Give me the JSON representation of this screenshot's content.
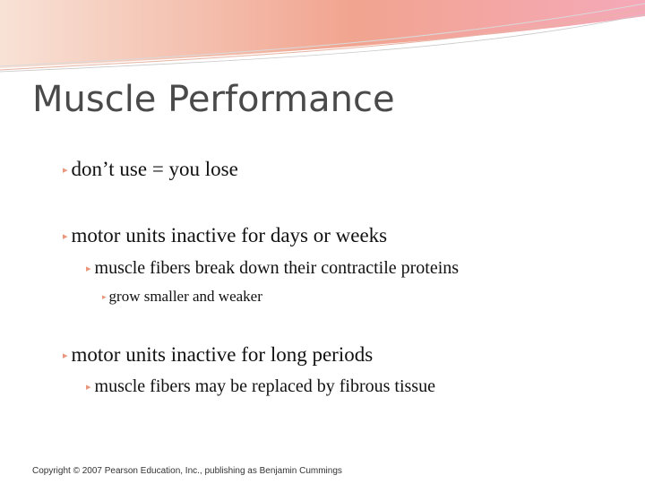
{
  "slide": {
    "title": "Muscle Performance",
    "bullets": [
      {
        "text": "don’t use = you lose",
        "level": 1
      },
      {
        "text": "motor units inactive for days or weeks",
        "level": 1
      },
      {
        "text": "muscle fibers break down their contractile proteins",
        "level": 2
      },
      {
        "text": "grow smaller and weaker",
        "level": 3
      },
      {
        "text": "motor units inactive for long periods",
        "level": 1
      },
      {
        "text": "muscle fibers may be replaced by fibrous tissue",
        "level": 2
      }
    ],
    "footer": "Copyright © 2007 Pearson Education, Inc., publishing as Benjamin Cummings"
  },
  "colors": {
    "banner_gradient_start": "#f6dccf",
    "banner_gradient_mid": "#f0a08c",
    "banner_gradient_end": "#f4a6b6",
    "bullet_glyph": "#e9967a",
    "title_text": "#4a4a4a"
  }
}
